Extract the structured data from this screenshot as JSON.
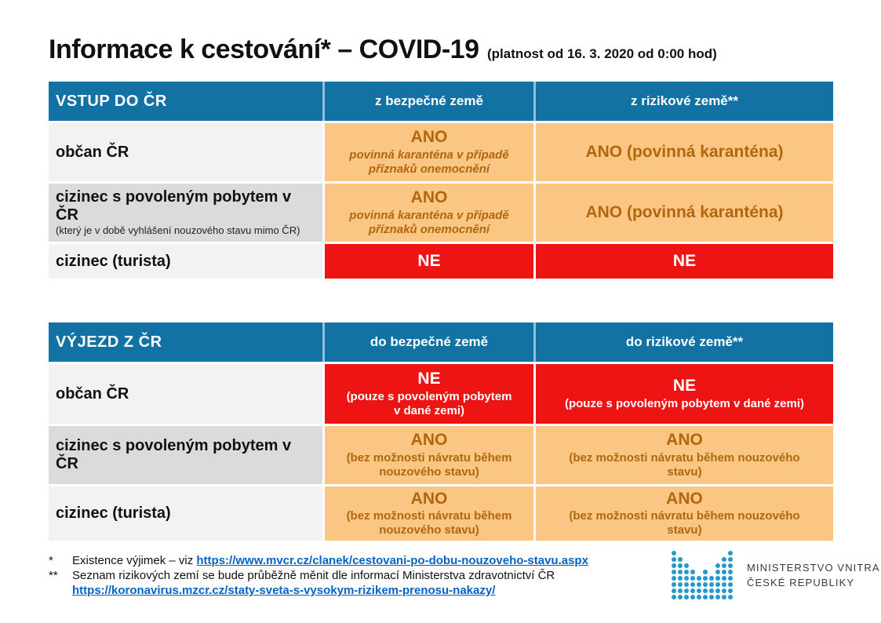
{
  "title": {
    "main": "Informace k cestování* – COVID-19",
    "suffix": "(platnost od 16. 3. 2020 od 0:00 hod)"
  },
  "colors": {
    "header_blue": "#1272A3",
    "divider_blue": "#8FC0DB",
    "cell_orange": "#FBC584",
    "cell_red": "#EE1414",
    "text_brown": "#B0670D",
    "row_light": "#F2F2F2",
    "row_dark": "#DBDBDB",
    "link_blue": "#0563C1",
    "logo_teal": "#2599CE"
  },
  "entry_table": {
    "title": "VSTUP DO ČR",
    "col_safe": "z bezpečné země",
    "col_risky": "z rizikové země**",
    "rows": [
      {
        "label": "občan ČR",
        "sublabel": "",
        "safe": {
          "verdict": "ANO",
          "detail": "povinná karanténa v případě příznaků onemocnění",
          "type": "orange"
        },
        "risky": {
          "verdict": "ANO (povinná karanténa)",
          "detail": "",
          "type": "orange"
        }
      },
      {
        "label": "cizinec s povoleným pobytem v ČR",
        "sublabel": "(který je v době vyhlášení nouzového stavu mimo ČR)",
        "safe": {
          "verdict": "ANO",
          "detail": "povinná karanténa v případě příznaků onemocnění",
          "type": "orange"
        },
        "risky": {
          "verdict": "ANO (povinná karanténa)",
          "detail": "",
          "type": "orange"
        }
      },
      {
        "label": "cizinec (turista)",
        "sublabel": "",
        "safe": {
          "verdict": "NE",
          "detail": "",
          "type": "red"
        },
        "risky": {
          "verdict": "NE",
          "detail": "",
          "type": "red"
        }
      }
    ]
  },
  "exit_table": {
    "title": "VÝJEZD Z ČR",
    "col_safe": "do bezpečné země",
    "col_risky": "do rizikové země**",
    "rows": [
      {
        "label": "občan ČR",
        "sublabel": "",
        "safe": {
          "verdict": "NE",
          "detail": "(pouze s povoleným pobytem v dané zemi)",
          "type": "red"
        },
        "risky": {
          "verdict": "NE",
          "detail": "(pouze s povoleným pobytem v dané zemi)",
          "type": "red"
        }
      },
      {
        "label": "cizinec s povoleným pobytem v ČR",
        "sublabel": "",
        "safe": {
          "verdict": "ANO",
          "detail": "(bez možnosti návratu během nouzového stavu)",
          "type": "orange"
        },
        "risky": {
          "verdict": "ANO",
          "detail": "(bez možnosti návratu během nouzového stavu)",
          "type": "orange"
        }
      },
      {
        "label": "cizinec (turista)",
        "sublabel": "",
        "safe": {
          "verdict": "ANO",
          "detail": "(bez možnosti návratu během nouzového stavu)",
          "type": "orange"
        },
        "risky": {
          "verdict": "ANO",
          "detail": "(bez možnosti návratu během nouzového stavu)",
          "type": "orange"
        }
      }
    ]
  },
  "footnotes": {
    "note1_marker": "*",
    "note1_text": "Existence výjimek – viz ",
    "note1_link": "https://www.mvcr.cz/clanek/cestovani-po-dobu-nouzoveho-stavu.aspx",
    "note2_marker": "**",
    "note2_text": "Seznam rizikových zemí se bude průběžně měnit dle informací Ministerstva zdravotnictví ČR",
    "note2_link": "https://koronavirus.mzcr.cz/staty-sveta-s-vysokym-rizikem-prenosu-nakazy/"
  },
  "logo": {
    "line1": "MINISTERSTVO VNITRA",
    "line2": "ČESKÉ REPUBLIKY",
    "pattern": [
      "1000000001",
      "1100000011",
      "1110000111",
      "1111010111",
      "1111111111",
      "1111111111",
      "1111111111",
      "1111111111"
    ]
  }
}
